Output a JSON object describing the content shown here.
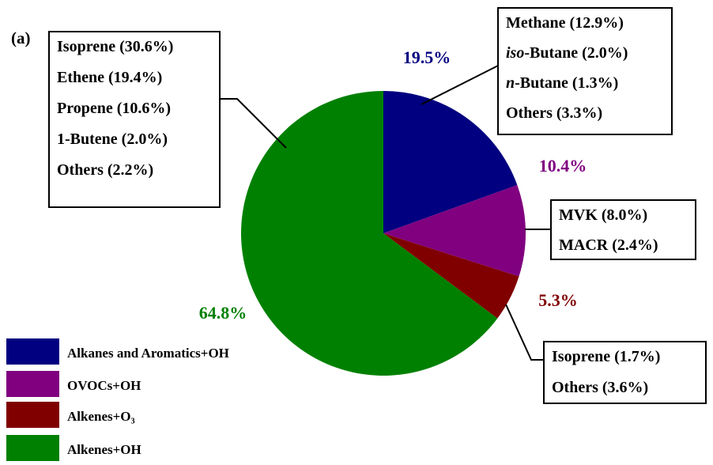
{
  "chart_data": {
    "type": "pie",
    "title": "(a)",
    "categories": [
      "Alkanes and Aromatics+OH",
      "OVOCs+OH",
      "Alkenes+O₃",
      "Alkenes+OH"
    ],
    "values": [
      19.5,
      10.4,
      5.3,
      64.8
    ],
    "value_labels": [
      "19.5%",
      "10.4%",
      "5.3%",
      "64.8%"
    ],
    "colors": [
      "#000080",
      "#800080",
      "#800000",
      "#008000"
    ],
    "annotations": [
      {
        "lines": [
          [
            {
              "text": "Methane (12.9%)"
            }
          ],
          [
            {
              "text": "iso",
              "italic": true
            },
            {
              "text": "-Butane (2.0%)"
            }
          ],
          [
            {
              "text": "n",
              "italic": true
            },
            {
              "text": "-Butane (1.3%)"
            }
          ],
          [
            {
              "text": "Others (3.3%)"
            }
          ]
        ]
      },
      {
        "lines": [
          [
            {
              "text": "MVK (8.0%)"
            }
          ],
          [
            {
              "text": "MACR (2.4%)"
            }
          ]
        ]
      },
      {
        "lines": [
          [
            {
              "text": "Isoprene (1.7%)"
            }
          ],
          [
            {
              "text": "Others (3.6%)"
            }
          ]
        ]
      },
      {
        "lines": [
          [
            {
              "text": "Isoprene (30.6%)"
            }
          ],
          [
            {
              "text": "Ethene (19.4%)"
            }
          ],
          [
            {
              "text": "Propene (10.6%)"
            }
          ],
          [
            {
              "text": "1-Butene (2.0%)"
            }
          ],
          [
            {
              "text": "Others (2.2%)"
            }
          ]
        ]
      }
    ]
  }
}
